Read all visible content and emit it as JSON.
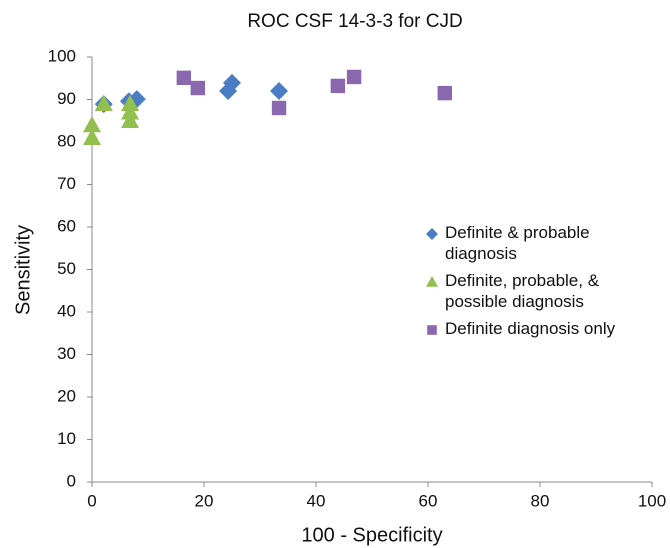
{
  "chart_data": {
    "type": "scatter",
    "title": "ROC CSF 14-3-3 for CJD",
    "x_label": "100 -  Specificity",
    "y_label": "Sensitivity",
    "xlim": [
      0,
      100
    ],
    "xticks": [
      0,
      20,
      40,
      60,
      80,
      100
    ],
    "ylim": [
      0,
      100
    ],
    "yticks": [
      0,
      10,
      20,
      30,
      40,
      50,
      60,
      70,
      80,
      90,
      100
    ],
    "series": [
      {
        "name": "Definite & probable diagnosis",
        "color": "#4a7dc4",
        "marker": "diamond",
        "x": [
          2.1,
          6.6,
          8.0,
          24.3,
          25.0,
          33.4
        ],
        "values": [
          88.9,
          89.6,
          90.1,
          92.0,
          93.9,
          92.0
        ]
      },
      {
        "name": "Definite, probable, & possible diagnosis",
        "color": "#93bf4f",
        "marker": "triangle",
        "x": [
          0,
          0,
          2.1,
          6.8,
          6.8,
          6.8
        ],
        "values": [
          84,
          81,
          89,
          89,
          87,
          85
        ]
      },
      {
        "name": "Definite diagnosis only",
        "color": "#8a68b0",
        "marker": "square",
        "x": [
          16.4,
          18.9,
          33.4,
          43.9,
          46.8,
          63.0
        ],
        "values": [
          95.1,
          92.7,
          88.0,
          93.2,
          95.3,
          91.5
        ]
      }
    ]
  }
}
